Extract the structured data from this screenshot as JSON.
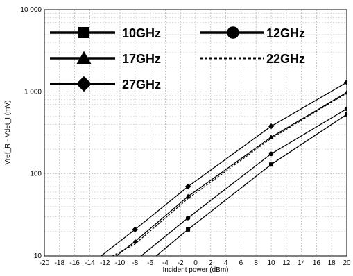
{
  "chart_data": {
    "type": "line",
    "title": "",
    "xlabel": "Incident power (dBm)",
    "ylabel": "Vref_R - Vdet_I (mV)",
    "xlim": [
      -20,
      20
    ],
    "ylim": [
      10,
      10000
    ],
    "yscale": "log",
    "grid": true,
    "legend_position": "top-left",
    "x_ticks": [
      "-20",
      "-18",
      "-16",
      "-14",
      "-12",
      "-10",
      "-8",
      "-6",
      "-4",
      "-2",
      "0",
      "2",
      "4",
      "6",
      "8",
      "10",
      "12",
      "14",
      "16",
      "18",
      "20"
    ],
    "y_ticks": [
      "10",
      "100",
      "1 000",
      "10 000"
    ],
    "series": [
      {
        "name": "10GHz",
        "marker": "square",
        "dashed": false,
        "x": [
          -5.2,
          -1,
          10,
          20
        ],
        "y": [
          10,
          21,
          130,
          530
        ],
        "marker_x": [
          -1,
          10,
          20
        ]
      },
      {
        "name": "12GHz",
        "marker": "circle",
        "dashed": false,
        "x": [
          -7.2,
          -1,
          10,
          20
        ],
        "y": [
          10,
          29,
          175,
          620
        ],
        "marker_x": [
          -1,
          10,
          20
        ]
      },
      {
        "name": "17GHz",
        "marker": "triangle",
        "dashed": false,
        "x": [
          -10.5,
          -8,
          -1,
          10,
          20
        ],
        "y": [
          10,
          15,
          53,
          280,
          980
        ],
        "marker_x": [
          -8,
          -1,
          10,
          20
        ]
      },
      {
        "name": "22GHz",
        "marker": "none",
        "dashed": true,
        "x": [
          -11,
          -8,
          -1,
          10,
          20
        ],
        "y": [
          10,
          14,
          50,
          270,
          960
        ],
        "marker_x": []
      },
      {
        "name": "27GHz",
        "marker": "diamond",
        "dashed": false,
        "x": [
          -12.5,
          -8,
          -1,
          10,
          20
        ],
        "y": [
          10,
          21,
          70,
          380,
          1300
        ],
        "marker_x": [
          -8,
          -1,
          10,
          20
        ]
      }
    ]
  }
}
